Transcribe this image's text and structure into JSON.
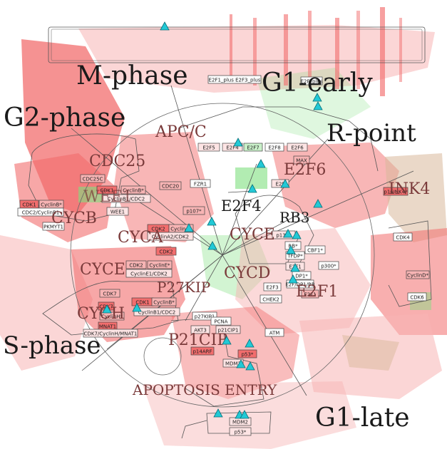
{
  "colors": {
    "red": "#f26d6d",
    "pink": "#f7b4b4",
    "green": "#7ee07e",
    "tan": "#d9b89a",
    "marker": "#22c9d6",
    "line": "#555555"
  },
  "phase_labels": [
    {
      "id": "m-phase",
      "text": "M-phase"
    },
    {
      "id": "g1-early",
      "text": "G1-early"
    },
    {
      "id": "g2-phase",
      "text": "G2-phase"
    },
    {
      "id": "r-point",
      "text": "R-point"
    },
    {
      "id": "s-phase",
      "text": "S-phase"
    },
    {
      "id": "g1-late",
      "text": "G1-late"
    }
  ],
  "module_labels": [
    {
      "id": "apc-c",
      "text": "APC/C"
    },
    {
      "id": "cdc25",
      "text": "CDC25"
    },
    {
      "id": "e2f6",
      "text": "E2F6"
    },
    {
      "id": "ink4",
      "text": "INK4"
    },
    {
      "id": "wee1",
      "text": "WEE1"
    },
    {
      "id": "cycb",
      "text": "CYCB"
    },
    {
      "id": "e2f4",
      "text": "E2F4"
    },
    {
      "id": "rb3",
      "text": "RB3"
    },
    {
      "id": "cyca",
      "text": "CYCA"
    },
    {
      "id": "cyce",
      "text": "CYCE"
    },
    {
      "id": "cycd",
      "text": "CYCD"
    },
    {
      "id": "cyce-2",
      "text": "CYCE"
    },
    {
      "id": "p27kip",
      "text": "P27KIP"
    },
    {
      "id": "e2f1",
      "text": "E2F1"
    },
    {
      "id": "cych",
      "text": "CYCH"
    },
    {
      "id": "p21cip",
      "text": "P21CIP"
    },
    {
      "id": "apoptosis-entry",
      "text": "APOPTOSIS ENTRY"
    }
  ],
  "nodes": [
    {
      "id": "e2f1-e2f3",
      "text": "E2F1_plus E2F3_plus"
    },
    {
      "id": "e2f-top",
      "text": "E2F_plus"
    },
    {
      "id": "e2f5",
      "text": "E2F5"
    },
    {
      "id": "e2f4-n",
      "text": "E2F4"
    },
    {
      "id": "e2f7",
      "text": "E2F7"
    },
    {
      "id": "e2f8",
      "text": "E2F8"
    },
    {
      "id": "e2f6-n",
      "text": "E2F6"
    },
    {
      "id": "max",
      "text": "MAX"
    },
    {
      "id": "e2f-mid",
      "text": "E2F"
    },
    {
      "id": "cdc25c",
      "text": "CDC25C"
    },
    {
      "id": "cdk1-a",
      "text": "CDK1"
    },
    {
      "id": "cyclinb-a",
      "text": "CyclinB*"
    },
    {
      "id": "cdc2-cyclinb",
      "text": "CDC2/CyclinB1"
    },
    {
      "id": "pkmyt1",
      "text": "PKMYT1"
    },
    {
      "id": "wee1-n",
      "text": "WEE1"
    },
    {
      "id": "cdk1-b",
      "text": "CDK1"
    },
    {
      "id": "cyclinb-b",
      "text": "CyclinB*"
    },
    {
      "id": "cyclinb-cdc2",
      "text": "CyclinB1/CDC2"
    },
    {
      "id": "cdc20",
      "text": "CDC20"
    },
    {
      "id": "fzr1",
      "text": "FZR1"
    },
    {
      "id": "p107",
      "text": "p107*"
    },
    {
      "id": "cdk2-a",
      "text": "CDK2"
    },
    {
      "id": "cyclina-a",
      "text": "CyclinA*"
    },
    {
      "id": "cyclina-cdk2",
      "text": "CyclinA2/CDK2"
    },
    {
      "id": "cdk2-b",
      "text": "CDK2"
    },
    {
      "id": "p130",
      "text": "p130*"
    },
    {
      "id": "rb",
      "text": "RB*"
    },
    {
      "id": "cbf1",
      "text": "CBF1*"
    },
    {
      "id": "tfdp",
      "text": "TFDP*"
    },
    {
      "id": "e2f1-n",
      "text": "E2F1"
    },
    {
      "id": "p300",
      "text": "p300*"
    },
    {
      "id": "dp1",
      "text": "DP1*"
    },
    {
      "id": "e2f-dp",
      "text": "E2F/DP1/RB"
    },
    {
      "id": "e2f3",
      "text": "E2F3"
    },
    {
      "id": "e2f1-b",
      "text": "E2F1"
    },
    {
      "id": "chek2",
      "text": "CHEK2"
    },
    {
      "id": "cdk2-c",
      "text": "CDK2"
    },
    {
      "id": "cycline-a",
      "text": "CyclinE*"
    },
    {
      "id": "cycline-cdk2",
      "text": "CyclinE1/CDK2"
    },
    {
      "id": "cdk7",
      "text": "CDK7"
    },
    {
      "id": "cdk7-b",
      "text": "CDK7"
    },
    {
      "id": "cyclinh",
      "text": "CyclinH*"
    },
    {
      "id": "mnat1",
      "text": "MNAT1"
    },
    {
      "id": "cdk7-cyclinh",
      "text": "CDK7/CyclinH/MNAT1"
    },
    {
      "id": "cdk1-c",
      "text": "CDK1"
    },
    {
      "id": "cyclinb-c",
      "text": "CyclinB*"
    },
    {
      "id": "cyclinb1-cdc2",
      "text": "CyclinB1/CDC2"
    },
    {
      "id": "p27kip1",
      "text": "p27KIP1"
    },
    {
      "id": "pcna",
      "text": "PCNA"
    },
    {
      "id": "akt3",
      "text": "AKT3"
    },
    {
      "id": "p21cip1",
      "text": "p21CIP1"
    },
    {
      "id": "p14arf",
      "text": "p14ARF"
    },
    {
      "id": "p53",
      "text": "p53*"
    },
    {
      "id": "mdm2",
      "text": "MDM2"
    },
    {
      "id": "atm",
      "text": "ATM"
    },
    {
      "id": "cdk4",
      "text": "CDK4"
    },
    {
      "id": "cyclind",
      "text": "CyclinD*"
    },
    {
      "id": "cdk6",
      "text": "CDK6"
    },
    {
      "id": "p16ink4",
      "text": "p16INK4*"
    },
    {
      "id": "mdm2-b",
      "text": "MDM2"
    },
    {
      "id": "p53-b",
      "text": "p53*"
    }
  ]
}
